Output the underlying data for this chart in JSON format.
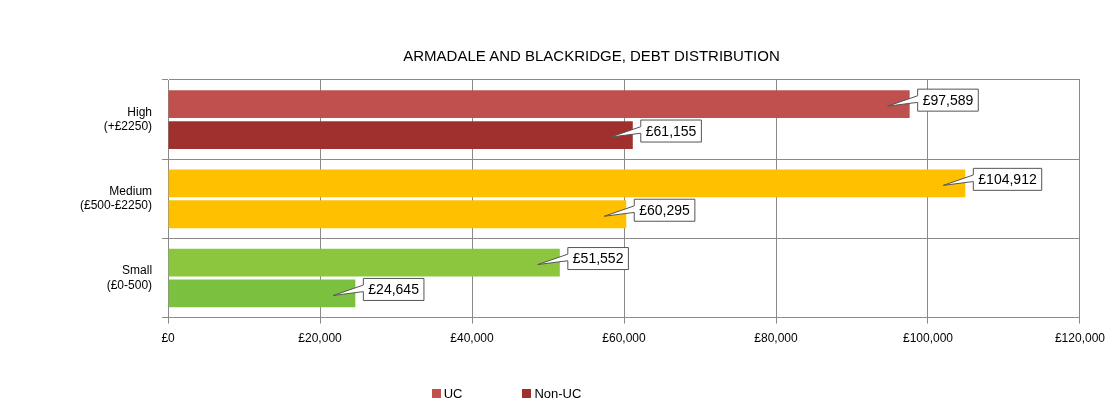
{
  "chart_data": {
    "type": "bar",
    "orientation": "horizontal",
    "title": "ARMADALE AND BLACKRIDGE, DEBT DISTRIBUTION",
    "categories": [
      "High (+£2250)",
      "Medium (£500-£2250)",
      "Small (£0-500)"
    ],
    "series": [
      {
        "name": "UC",
        "color": "#c0504d",
        "colors": [
          "#c0504d",
          "#ffc000",
          "#8cc63f"
        ],
        "values": [
          97589,
          104912,
          51552
        ],
        "value_labels": [
          "£97,589",
          "£104,912",
          "£51,552"
        ]
      },
      {
        "name": "Non-UC",
        "color": "#a0302d",
        "colors": [
          "#a0302d",
          "#ffc000",
          "#7cc040"
        ],
        "values": [
          61155,
          60295,
          24645
        ],
        "value_labels": [
          "£61,155",
          "£60,295",
          "£24,645"
        ]
      }
    ],
    "xlim": [
      0,
      120000
    ],
    "xticks": [
      {
        "value": 0,
        "label": "£0"
      },
      {
        "value": 20000,
        "label": "£20,000"
      },
      {
        "value": 40000,
        "label": "£40,000"
      },
      {
        "value": 60000,
        "label": "£60,000"
      },
      {
        "value": 80000,
        "label": "£80,000"
      },
      {
        "value": 100000,
        "label": "£100,000"
      },
      {
        "value": 120000,
        "label": "£120,000"
      }
    ],
    "grid": true,
    "legend": "bottom"
  }
}
